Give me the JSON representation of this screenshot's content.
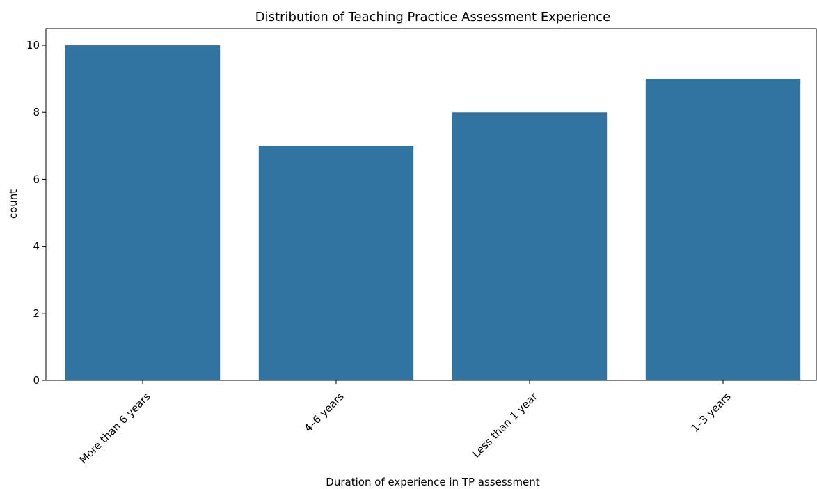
{
  "chart_data": {
    "type": "bar",
    "title": "Distribution of Teaching Practice Assessment Experience",
    "xlabel": "Duration of experience in TP assessment",
    "ylabel": "count",
    "categories": [
      "More than 6 years",
      "4–6 years",
      "Less than 1 year",
      "1–3 years"
    ],
    "values": [
      10,
      7,
      8,
      9
    ],
    "color": "#3274a1",
    "ylim": [
      0,
      10.5
    ],
    "yticks": [
      0,
      2,
      4,
      6,
      8,
      10
    ],
    "grid": false
  }
}
